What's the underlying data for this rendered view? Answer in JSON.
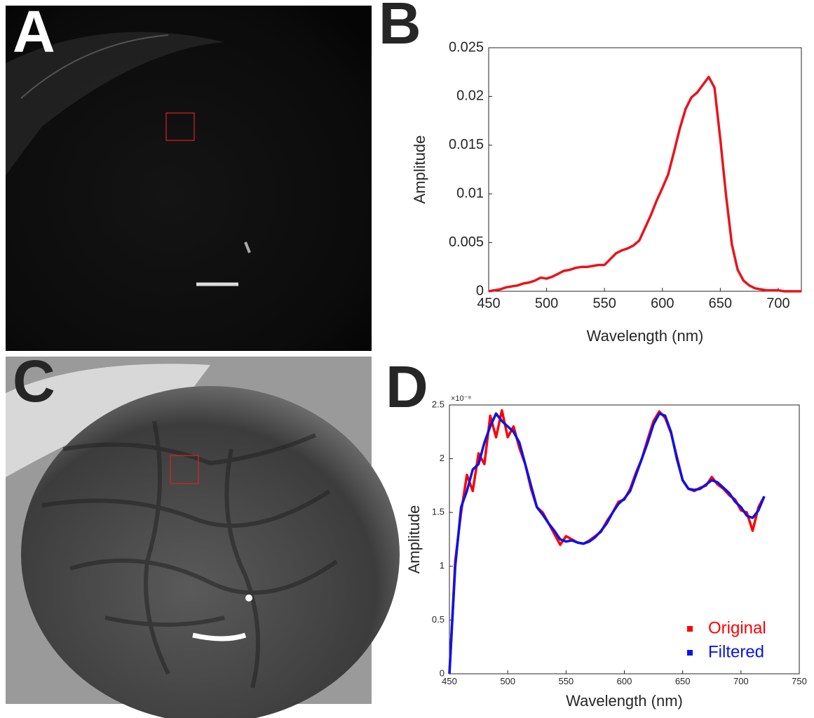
{
  "panel_labels": [
    "A",
    "B",
    "C",
    "D"
  ],
  "chart_data": [
    {
      "type": "line",
      "x_label": "Wavelength (nm)",
      "y_label": "Amplitude",
      "x": [
        450,
        455,
        460,
        465,
        470,
        475,
        480,
        485,
        490,
        495,
        500,
        505,
        510,
        515,
        520,
        525,
        530,
        535,
        540,
        545,
        550,
        555,
        560,
        565,
        570,
        575,
        580,
        585,
        590,
        595,
        600,
        605,
        610,
        615,
        620,
        625,
        630,
        635,
        640,
        645,
        650,
        655,
        660,
        665,
        670,
        675,
        680,
        685,
        690,
        695,
        700,
        705,
        710,
        715,
        720
      ],
      "values": [
        0,
        0.0001,
        0.0002,
        0.0004,
        0.0005,
        0.0006,
        0.0008,
        0.0009,
        0.0011,
        0.0014,
        0.0013,
        0.0015,
        0.0018,
        0.0021,
        0.0022,
        0.0024,
        0.0025,
        0.0025,
        0.0026,
        0.0027,
        0.0027,
        0.0033,
        0.0039,
        0.0042,
        0.0044,
        0.0047,
        0.0052,
        0.0065,
        0.0078,
        0.0093,
        0.0106,
        0.012,
        0.0143,
        0.0167,
        0.0187,
        0.0199,
        0.0204,
        0.0212,
        0.022,
        0.0209,
        0.0156,
        0.0098,
        0.0048,
        0.0022,
        0.0011,
        0.0006,
        0.0003,
        0.0002,
        0.0001,
        0.0001,
        0.0001,
        0,
        0,
        0,
        0
      ],
      "color": "#e8141c",
      "xlim": [
        450,
        720
      ],
      "xticks": [
        450,
        500,
        550,
        600,
        650,
        700
      ],
      "ylim": [
        0,
        0.025
      ],
      "yticks": [
        0,
        0.005,
        0.01,
        0.015,
        0.02,
        0.025
      ],
      "grid": false
    },
    {
      "type": "line",
      "x_label": "Wavelength (nm)",
      "y_label": "Amplitude",
      "y_multiplier": "×10⁻⁹",
      "x": [
        450,
        455,
        460,
        465,
        470,
        475,
        480,
        485,
        490,
        495,
        500,
        505,
        510,
        515,
        520,
        525,
        530,
        535,
        540,
        545,
        550,
        555,
        560,
        565,
        570,
        575,
        580,
        585,
        590,
        595,
        600,
        605,
        610,
        615,
        620,
        625,
        630,
        635,
        640,
        645,
        650,
        655,
        660,
        665,
        670,
        675,
        680,
        685,
        690,
        695,
        700,
        705,
        710,
        715,
        720
      ],
      "series": [
        {
          "name": "Original",
          "color": "#ff0000",
          "values": [
            0,
            1.05,
            1.5,
            1.85,
            1.7,
            2.05,
            1.95,
            2.4,
            2.2,
            2.45,
            2.2,
            2.3,
            2.1,
            1.95,
            1.72,
            1.55,
            1.5,
            1.4,
            1.3,
            1.2,
            1.28,
            1.25,
            1.22,
            1.21,
            1.24,
            1.28,
            1.32,
            1.42,
            1.5,
            1.6,
            1.62,
            1.72,
            1.87,
            2.0,
            2.18,
            2.35,
            2.44,
            2.38,
            2.24,
            2.02,
            1.8,
            1.72,
            1.7,
            1.73,
            1.75,
            1.83,
            1.76,
            1.72,
            1.66,
            1.62,
            1.52,
            1.5,
            1.33,
            1.55,
            1.65
          ]
        },
        {
          "name": "Filtered",
          "color": "#0a14e6",
          "values": [
            0,
            1.0,
            1.55,
            1.7,
            1.9,
            1.95,
            2.15,
            2.3,
            2.42,
            2.35,
            2.3,
            2.25,
            2.15,
            1.95,
            1.75,
            1.55,
            1.48,
            1.4,
            1.33,
            1.25,
            1.23,
            1.24,
            1.22,
            1.21,
            1.23,
            1.27,
            1.33,
            1.4,
            1.5,
            1.58,
            1.63,
            1.7,
            1.85,
            2.0,
            2.15,
            2.32,
            2.42,
            2.4,
            2.25,
            2.0,
            1.8,
            1.72,
            1.71,
            1.72,
            1.76,
            1.8,
            1.78,
            1.73,
            1.68,
            1.6,
            1.55,
            1.47,
            1.45,
            1.52,
            1.65
          ]
        }
      ],
      "xlim": [
        450,
        750
      ],
      "xticks": [
        450,
        500,
        550,
        600,
        650,
        700,
        750
      ],
      "ylim": [
        0,
        2.5
      ],
      "yticks": [
        0,
        0.5,
        1,
        1.5,
        2,
        2.5
      ],
      "grid": false,
      "legend": "lower right"
    }
  ]
}
